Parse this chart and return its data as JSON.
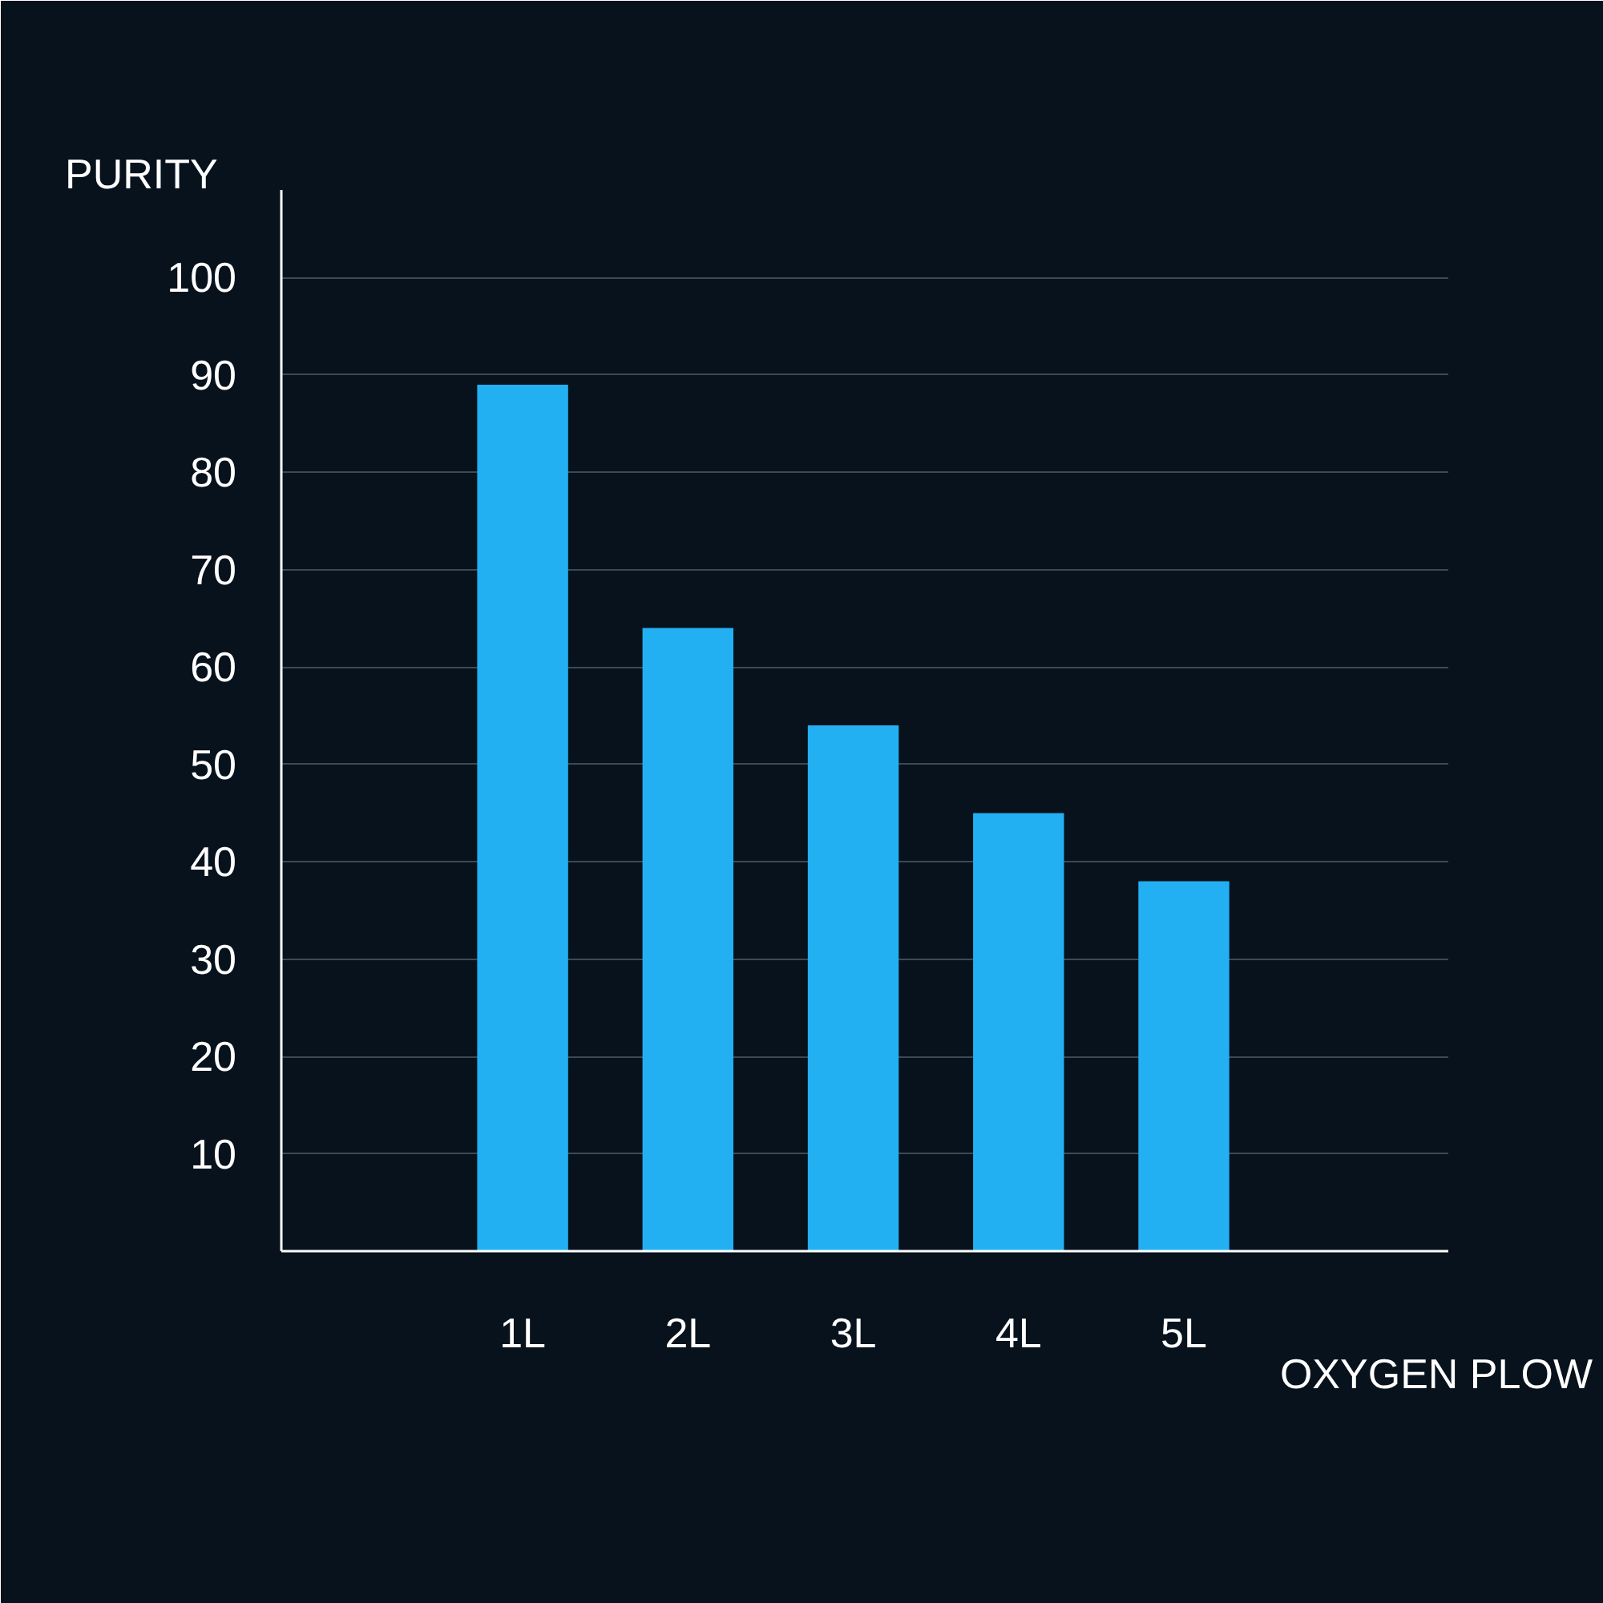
{
  "chart_data": {
    "type": "bar",
    "xlabel": "OXYGEN PLOW",
    "ylabel": "PURITY",
    "categories": [
      "1L",
      "2L",
      "3L",
      "4L",
      "5L"
    ],
    "values": [
      89,
      64,
      54,
      45,
      38
    ],
    "color": "#22b0f2",
    "ylim": [
      0,
      109
    ],
    "yticks": [
      10,
      20,
      30,
      40,
      50,
      60,
      70,
      80,
      90,
      100
    ],
    "grid": "y"
  }
}
